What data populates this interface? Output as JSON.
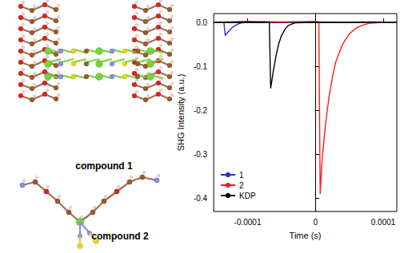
{
  "chart_data": {
    "type": "line",
    "x_label": "Time (s)",
    "y_label": "SHG Intensity (a.u.)",
    "xlim": [
      -0.00015,
      0.00012
    ],
    "xticks": [
      -0.0001,
      0,
      0.0001
    ],
    "ylim": [
      -0.43,
      0.02
    ],
    "yticks": [
      -0.4,
      -0.3,
      -0.2,
      -0.1,
      {
        "value": 0,
        "label": "0.0"
      }
    ],
    "grid": false,
    "legend": "lower left",
    "series": [
      {
        "name": "1",
        "color": "#2b2bd6",
        "x": [
          -0.00015,
          -0.00014,
          -0.000135,
          -0.000133,
          -0.00013,
          -0.000126,
          -0.000122,
          -0.000118,
          -0.000113,
          -0.000105,
          -8e-05,
          -4e-05,
          0,
          4e-05,
          8e-05,
          0.00012
        ],
        "values": [
          0,
          0.001,
          0,
          -0.03,
          -0.024,
          -0.017,
          -0.011,
          -0.007,
          -0.003,
          0,
          0.001,
          0,
          0.001,
          0,
          0.001,
          0
        ]
      },
      {
        "name": "2",
        "color": "#ff1a1a",
        "x": [
          -0.00015,
          -0.0001,
          -5e-05,
          0,
          5e-06,
          7e-06,
          1e-05,
          1.5e-05,
          2e-05,
          2.5e-05,
          3e-05,
          4e-05,
          5e-05,
          6e-05,
          7e-05,
          8e-05,
          0.0001,
          0.00012
        ],
        "values": [
          0,
          0.002,
          0.001,
          0.002,
          0,
          -0.39,
          -0.31,
          -0.23,
          -0.17,
          -0.125,
          -0.09,
          -0.05,
          -0.026,
          -0.013,
          -0.006,
          -0.002,
          0,
          0
        ]
      },
      {
        "name": "KDP",
        "color": "#000000",
        "x": [
          -0.00015,
          -0.0001,
          -7e-05,
          -6.8e-05,
          -6.6e-05,
          -6.2e-05,
          -5.8e-05,
          -5.4e-05,
          -5e-05,
          -4.5e-05,
          -4e-05,
          -3e-05,
          0,
          6e-05,
          0.00012
        ],
        "values": [
          0,
          0.001,
          0,
          0,
          -0.15,
          -0.11,
          -0.075,
          -0.048,
          -0.03,
          -0.016,
          -0.007,
          -0.001,
          0,
          0,
          0
        ]
      }
    ]
  },
  "structures": {
    "labels": [
      "compound 1",
      "compound 2"
    ]
  }
}
